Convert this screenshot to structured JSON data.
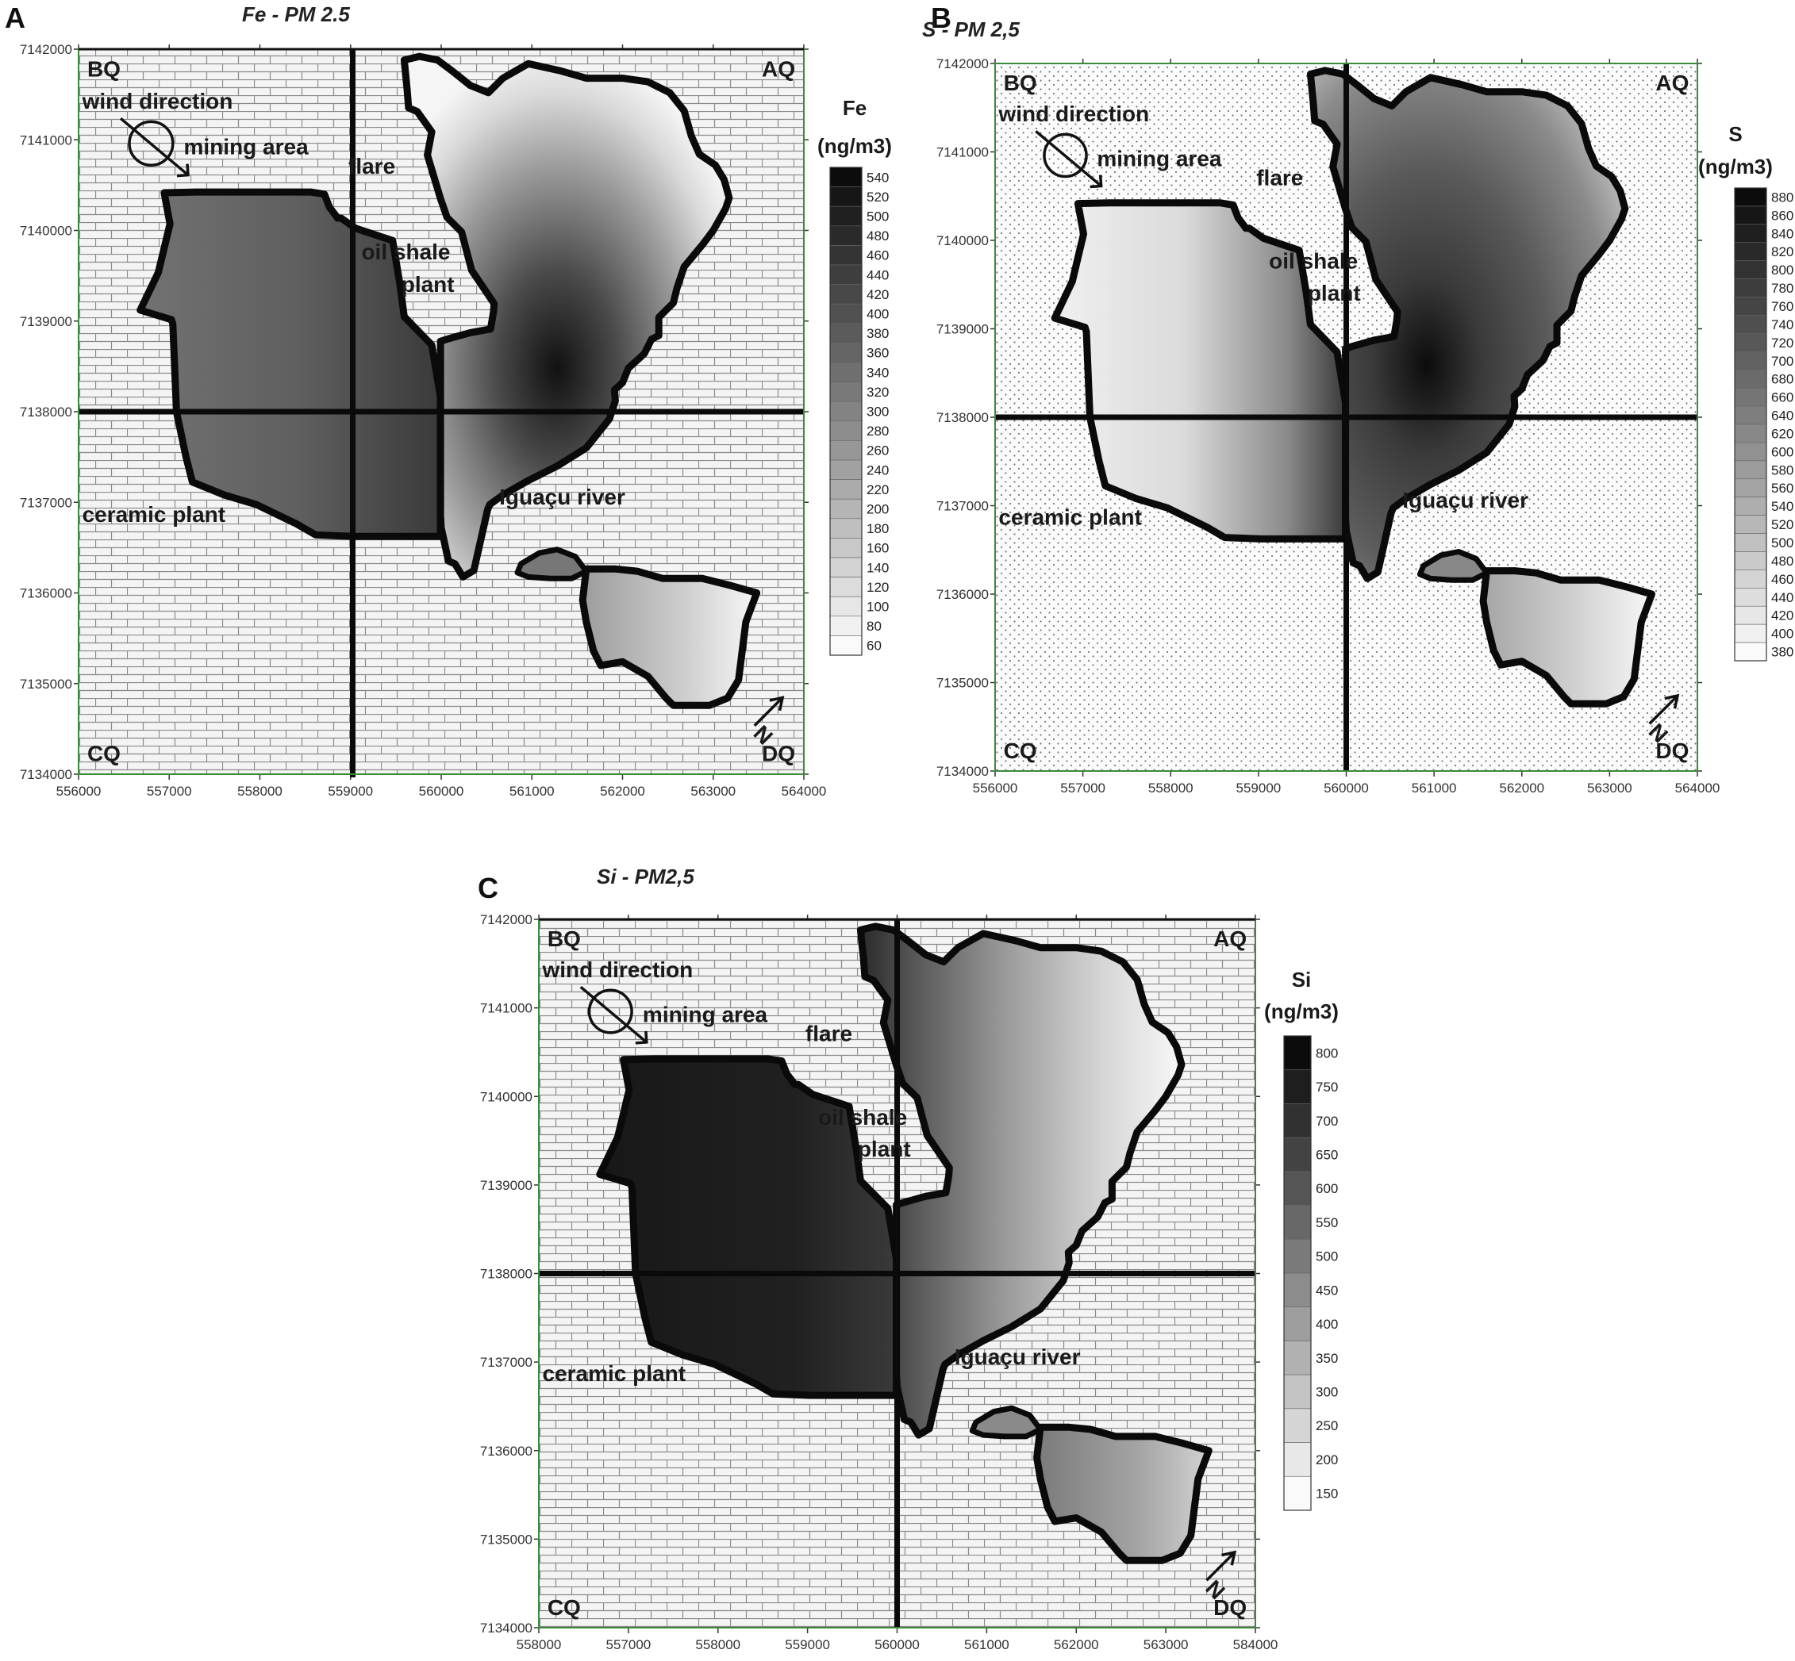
{
  "panels": [
    {
      "letter": "A",
      "title": "Fe - PM 2.5",
      "element": "Fe",
      "units": "(ng/m3)",
      "pattern": "brick",
      "ramp": "fe",
      "yticks": [
        "7142000",
        "7141000",
        "7140000",
        "7139000",
        "7138000",
        "7137000",
        "7136000",
        "7135000",
        "7134000"
      ],
      "xticks": [
        "556000",
        "557000",
        "558000",
        "559000",
        "560000",
        "561000",
        "562000",
        "563000",
        "564000"
      ],
      "colorbar": [
        "540",
        "520",
        "500",
        "480",
        "460",
        "440",
        "420",
        "400",
        "380",
        "360",
        "340",
        "320",
        "300",
        "280",
        "260",
        "240",
        "220",
        "200",
        "180",
        "160",
        "140",
        "120",
        "100",
        "80",
        "60"
      ],
      "labels": {
        "bq": "BQ",
        "aq": "AQ",
        "cq": "CQ",
        "dq": "DQ",
        "wind": "wind direction",
        "mining": "mining area",
        "flare": "flare",
        "oil1": "oil shale",
        "oil2": "plant",
        "ceramic": "ceramic plant",
        "river": "Iguaçu river",
        "north": "N"
      }
    },
    {
      "letter": "B",
      "title": "S - PM 2,5",
      "element": "S",
      "units": "(ng/m3)",
      "pattern": "dots",
      "ramp": "s",
      "yticks": [
        "7142000",
        "7141000",
        "7140000",
        "7139000",
        "7138000",
        "7137000",
        "7136000",
        "7135000",
        "7134000"
      ],
      "xticks": [
        "556000",
        "557000",
        "558000",
        "559000",
        "560000",
        "561000",
        "562000",
        "563000",
        "564000"
      ],
      "colorbar": [
        "880",
        "860",
        "840",
        "820",
        "800",
        "780",
        "760",
        "740",
        "720",
        "700",
        "680",
        "660",
        "640",
        "620",
        "600",
        "580",
        "560",
        "540",
        "520",
        "500",
        "480",
        "460",
        "440",
        "420",
        "400",
        "380"
      ],
      "labels": {
        "bq": "BQ",
        "aq": "AQ",
        "cq": "CQ",
        "dq": "DQ",
        "wind": "wind direction",
        "mining": "mining area",
        "flare": "flare",
        "oil1": "oil shale",
        "oil2": "plant",
        "ceramic": "ceramic plant",
        "river": "Iguaçu river",
        "north": "N"
      }
    },
    {
      "letter": "C",
      "title": "Si - PM2,5",
      "element": "Si",
      "units": "(ng/m3)",
      "pattern": "brick",
      "ramp": "si",
      "yticks": [
        "7142000",
        "7141000",
        "7140000",
        "7139000",
        "7138000",
        "7137000",
        "7136000",
        "7135000",
        "7134000"
      ],
      "xticks": [
        "558000",
        "557000",
        "558000",
        "559000",
        "560000",
        "561000",
        "562000",
        "563000",
        "584000"
      ],
      "colorbar": [
        "800",
        "750",
        "700",
        "650",
        "600",
        "550",
        "500",
        "450",
        "400",
        "350",
        "300",
        "250",
        "200",
        "150"
      ],
      "labels": {
        "bq": "BQ",
        "aq": "AQ",
        "cq": "CQ",
        "dq": "DQ",
        "wind": "wind direction",
        "mining": "mining area",
        "flare": "flare",
        "oil1": "oil shale",
        "oil2": "plant",
        "ceramic": "ceramic plant",
        "river": "Iguaçu river",
        "north": "N"
      }
    }
  ],
  "colors": {
    "frame": "#3a8a3a",
    "outline": "#0a0a0a",
    "brick_bg": "#f4f4f4",
    "brick_line": "#8a8a8a"
  }
}
